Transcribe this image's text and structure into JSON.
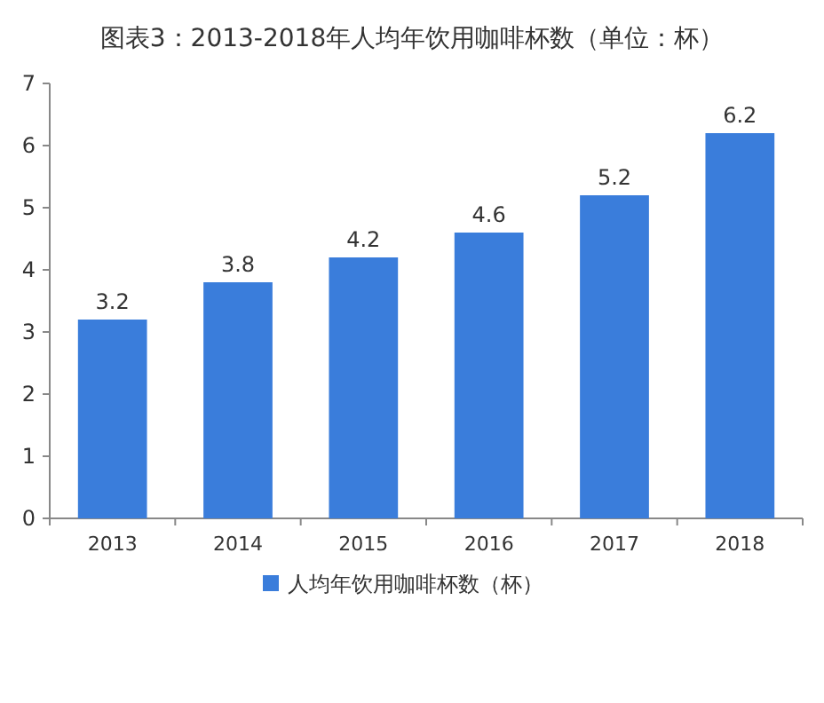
{
  "chart_data": {
    "type": "bar",
    "title": "图表3：2013-2018年人均年饮用咖啡杯数（单位：杯）",
    "categories": [
      "2013",
      "2014",
      "2015",
      "2016",
      "2017",
      "2018"
    ],
    "series": [
      {
        "name": "人均年饮用咖啡杯数（杯）",
        "color": "#3a7ddb",
        "values": [
          3.2,
          3.8,
          4.2,
          4.6,
          5.2,
          6.2
        ]
      }
    ],
    "ylim": [
      0,
      7
    ],
    "yticks": [
      0,
      1,
      2,
      3,
      4,
      5,
      6,
      7
    ],
    "data_labels": true,
    "grid": false,
    "legend": "bottom"
  }
}
